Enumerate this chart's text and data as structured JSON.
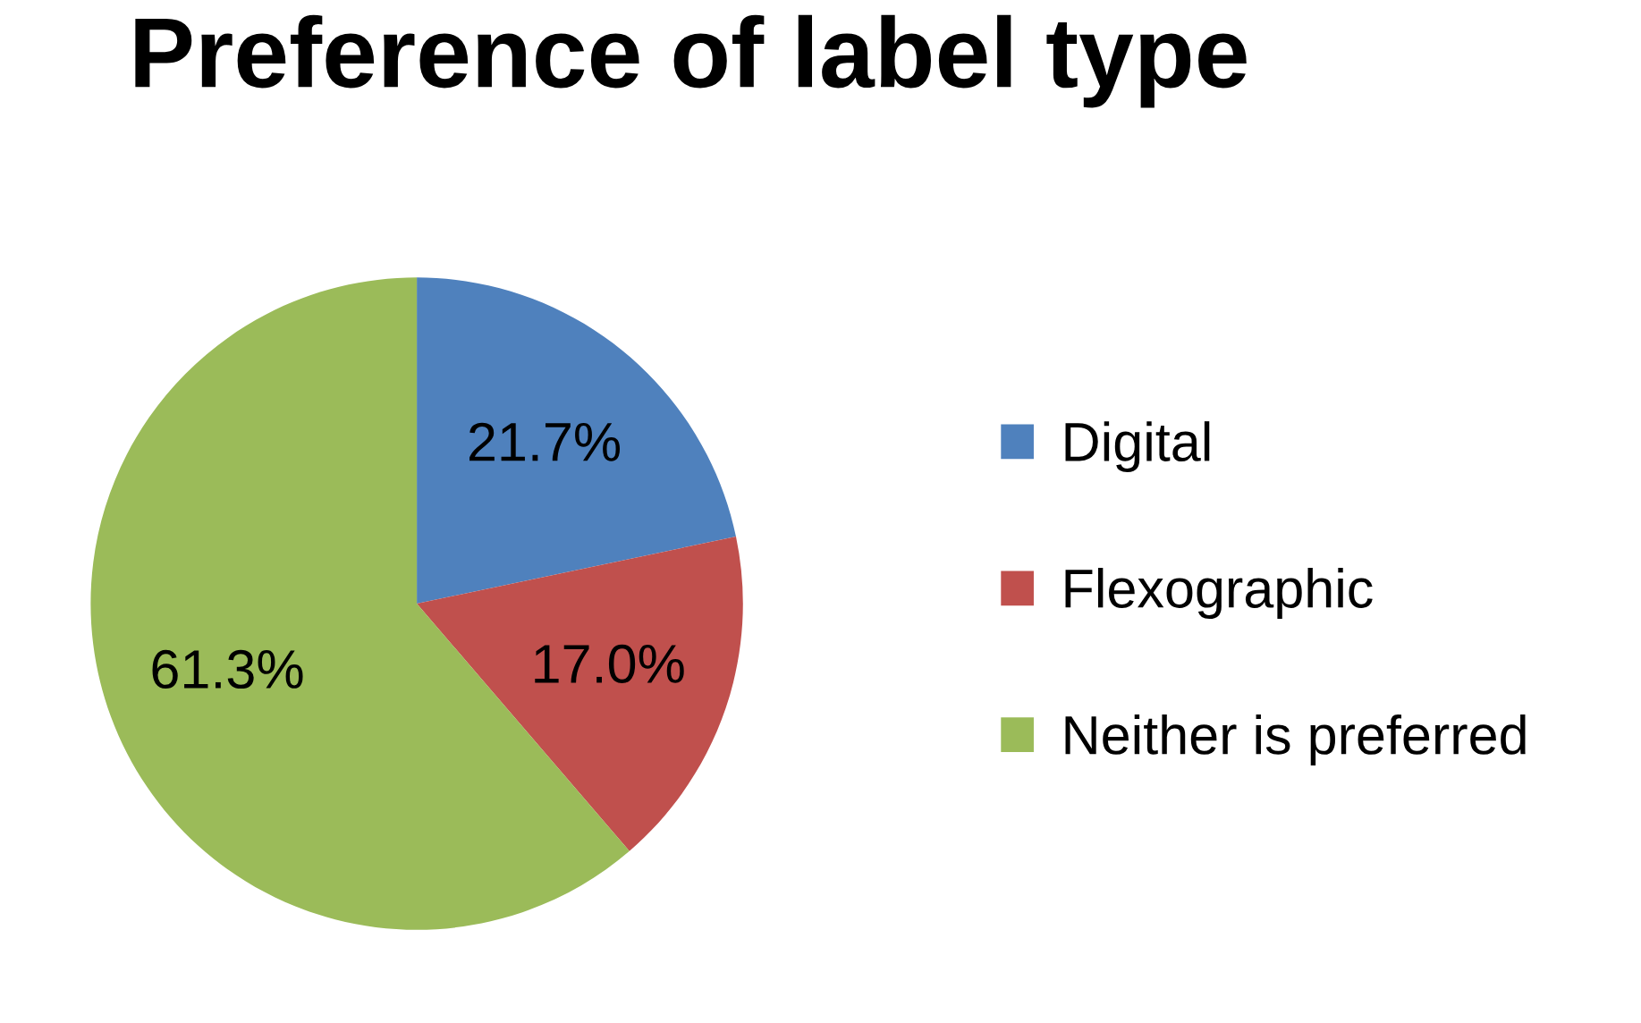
{
  "chart_data": {
    "type": "pie",
    "title": "Preference of label type",
    "categories": [
      "Digital",
      "Flexographic",
      "Neither is preferred"
    ],
    "values": [
      21.7,
      17.0,
      61.3
    ],
    "colors": [
      "#4f81bd",
      "#c0504d",
      "#9bbb59"
    ],
    "value_labels": [
      "21.7%",
      "17.0%",
      "61.3%"
    ],
    "legend": "right"
  }
}
